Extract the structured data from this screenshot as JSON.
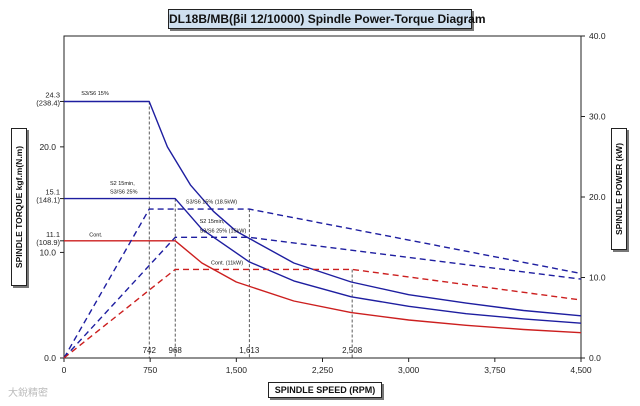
{
  "chart_data": {
    "type": "line",
    "title": "DL18B/MB(βil 12/10000) Spindle Power-Torque Diagram",
    "xlabel": "SPINDLE SPEED (RPM)",
    "ylabel_left": "SPINDLE TORQUE  kgf.m(N.m)",
    "ylabel_right": "SPINDLE POWER  (kW)",
    "xlim": [
      0,
      4500
    ],
    "x_ticks": [
      0,
      750,
      1500,
      2250,
      3000,
      3750,
      4500
    ],
    "x_tick_labels": [
      "0",
      "750",
      "1,500",
      "2,250",
      "3,000",
      "3,750",
      "4,500"
    ],
    "ylim_left": [
      0,
      30.5
    ],
    "y_left_ticks": [
      {
        "value": 0,
        "label": "0.0"
      },
      {
        "value": 10,
        "label": "10.0"
      },
      {
        "value": 20,
        "label": "20.0"
      }
    ],
    "y_left_values": [
      {
        "value": 24.3,
        "label1": "24.3",
        "label2": "(238.4)"
      },
      {
        "value": 15.1,
        "label1": "15.1",
        "label2": "(148.1)"
      },
      {
        "value": 11.1,
        "label1": "11.1",
        "label2": "(108.9)"
      }
    ],
    "ylim_right": [
      0,
      40
    ],
    "y_right_ticks": [
      {
        "value": 0,
        "label": "0.0"
      },
      {
        "value": 10,
        "label": "10.0"
      },
      {
        "value": 20,
        "label": "20.0"
      },
      {
        "value": 30,
        "label": "30.0"
      },
      {
        "value": 40,
        "label": "40.0"
      }
    ],
    "ref_lines": [
      {
        "x": 742,
        "label": "742"
      },
      {
        "x": 968,
        "label": "968"
      },
      {
        "x": 1613,
        "label": "1,613"
      },
      {
        "x": 2508,
        "label": "2,508"
      }
    ],
    "series": [
      {
        "name": "S3/S6 15%",
        "kind": "torque",
        "axis": "left",
        "color": "#1e1ea0",
        "dash": false,
        "x": [
          0,
          742,
          900,
          1100,
          1300,
          1500,
          2000,
          2500,
          3000,
          3500,
          4000,
          4500
        ],
        "y": [
          24.3,
          24.3,
          20.0,
          16.4,
          13.9,
          12.0,
          9.0,
          7.2,
          6.0,
          5.2,
          4.5,
          4.0
        ]
      },
      {
        "name": "S2 15min, S3/S6 25%",
        "kind": "torque",
        "axis": "left",
        "color": "#1e1ea0",
        "dash": false,
        "x": [
          0,
          968,
          1200,
          1613,
          2000,
          2500,
          3000,
          3500,
          4000,
          4500
        ],
        "y": [
          15.1,
          15.1,
          12.2,
          9.1,
          7.3,
          5.8,
          4.9,
          4.2,
          3.7,
          3.3
        ]
      },
      {
        "name": "Cont.",
        "kind": "torque",
        "axis": "left",
        "color": "#cc1f1f",
        "dash": false,
        "x": [
          0,
          968,
          1200,
          1500,
          2000,
          2500,
          3000,
          3500,
          4000,
          4500
        ],
        "y": [
          11.1,
          11.1,
          9.0,
          7.2,
          5.4,
          4.3,
          3.6,
          3.1,
          2.7,
          2.4
        ]
      },
      {
        "name": "S3/S6 15% (18.5kW)",
        "kind": "power",
        "axis": "right",
        "color": "#1e1ea0",
        "dash": true,
        "x": [
          0,
          742,
          1613,
          4500
        ],
        "y": [
          0,
          18.5,
          18.5,
          10.5
        ]
      },
      {
        "name": "S2 15min, S3/S6 25% (15kW)",
        "kind": "power",
        "axis": "right",
        "color": "#1e1ea0",
        "dash": true,
        "x": [
          0,
          968,
          1613,
          4500
        ],
        "y": [
          0,
          15,
          15,
          9.8
        ]
      },
      {
        "name": "Cont. (11kW)",
        "kind": "power",
        "axis": "right",
        "color": "#cc1f1f",
        "dash": true,
        "x": [
          0,
          968,
          2508,
          4500
        ],
        "y": [
          0,
          11,
          11,
          7.2
        ]
      }
    ],
    "annotations": [
      {
        "text": "S3/S6 15%",
        "x": 150,
        "y": 24.9,
        "axis": "left"
      },
      {
        "text": "S2 15min,",
        "x": 400,
        "y": 16.4,
        "axis": "left"
      },
      {
        "text": "S3/S6 25%",
        "x": 400,
        "y": 15.6,
        "axis": "left"
      },
      {
        "text": "Cont.",
        "x": 220,
        "y": 11.5,
        "axis": "left"
      },
      {
        "text": "S3/S6 15% (18.5kW)",
        "x": 1060,
        "y": 19.2,
        "axis": "right"
      },
      {
        "text": "S2 15min,",
        "x": 1180,
        "y": 16.8,
        "axis": "right"
      },
      {
        "text": "S3/S6 25% (15kW)",
        "x": 1180,
        "y": 15.6,
        "axis": "right"
      },
      {
        "text": "Cont. (11kW)",
        "x": 1280,
        "y": 11.6,
        "axis": "right"
      }
    ],
    "grid": false,
    "legend": "none"
  },
  "watermark": "大銳精密"
}
